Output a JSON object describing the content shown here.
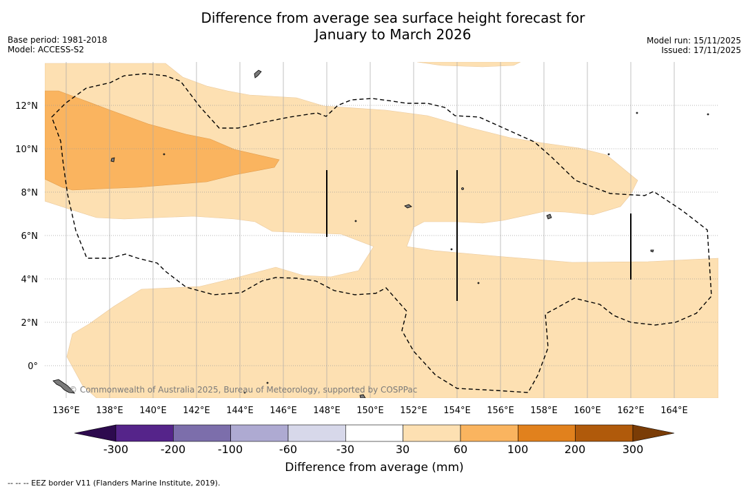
{
  "title": {
    "line1": "Difference from average sea surface height forecast for",
    "line2": "January to March 2026"
  },
  "meta": {
    "base_period": "Base period: 1981-2018",
    "model": "Model: ACCESS-S2",
    "model_run": "Model run: 15/11/2025",
    "issued": "Issued: 17/11/2025"
  },
  "map": {
    "lon_labels": [
      "136°E",
      "138°E",
      "140°E",
      "142°E",
      "144°E",
      "146°E",
      "148°E",
      "150°E",
      "152°E",
      "154°E",
      "156°E",
      "158°E",
      "160°E",
      "162°E",
      "164°E"
    ],
    "lat_labels": [
      "12°N",
      "10°N",
      "8°N",
      "6°N",
      "4°N",
      "2°N",
      "0°"
    ],
    "credit": "© Commonwealth of Australia 2025, Bureau of Meteorology, supported by COSPPac",
    "region_colors": {
      "light_orange": "#fde0b2",
      "medium_orange": "#fab45f"
    }
  },
  "colorbar": {
    "title": "Difference from average (mm)",
    "tick_labels": [
      "-300",
      "-200",
      "-100",
      "-60",
      "-30",
      "30",
      "60",
      "100",
      "200",
      "300"
    ],
    "colors": [
      "#55248a",
      "#7c6eab",
      "#aeaad2",
      "#d7d8ea",
      "#ffffff",
      "#fde0b2",
      "#fab45f",
      "#e1811d",
      "#b05a0b"
    ],
    "extend_low_color": "#2d0a4e",
    "extend_high_color": "#7a3c06"
  },
  "footnote": "-- -- -- EEZ border V11 (Flanders Marine Institute, 2019)."
}
